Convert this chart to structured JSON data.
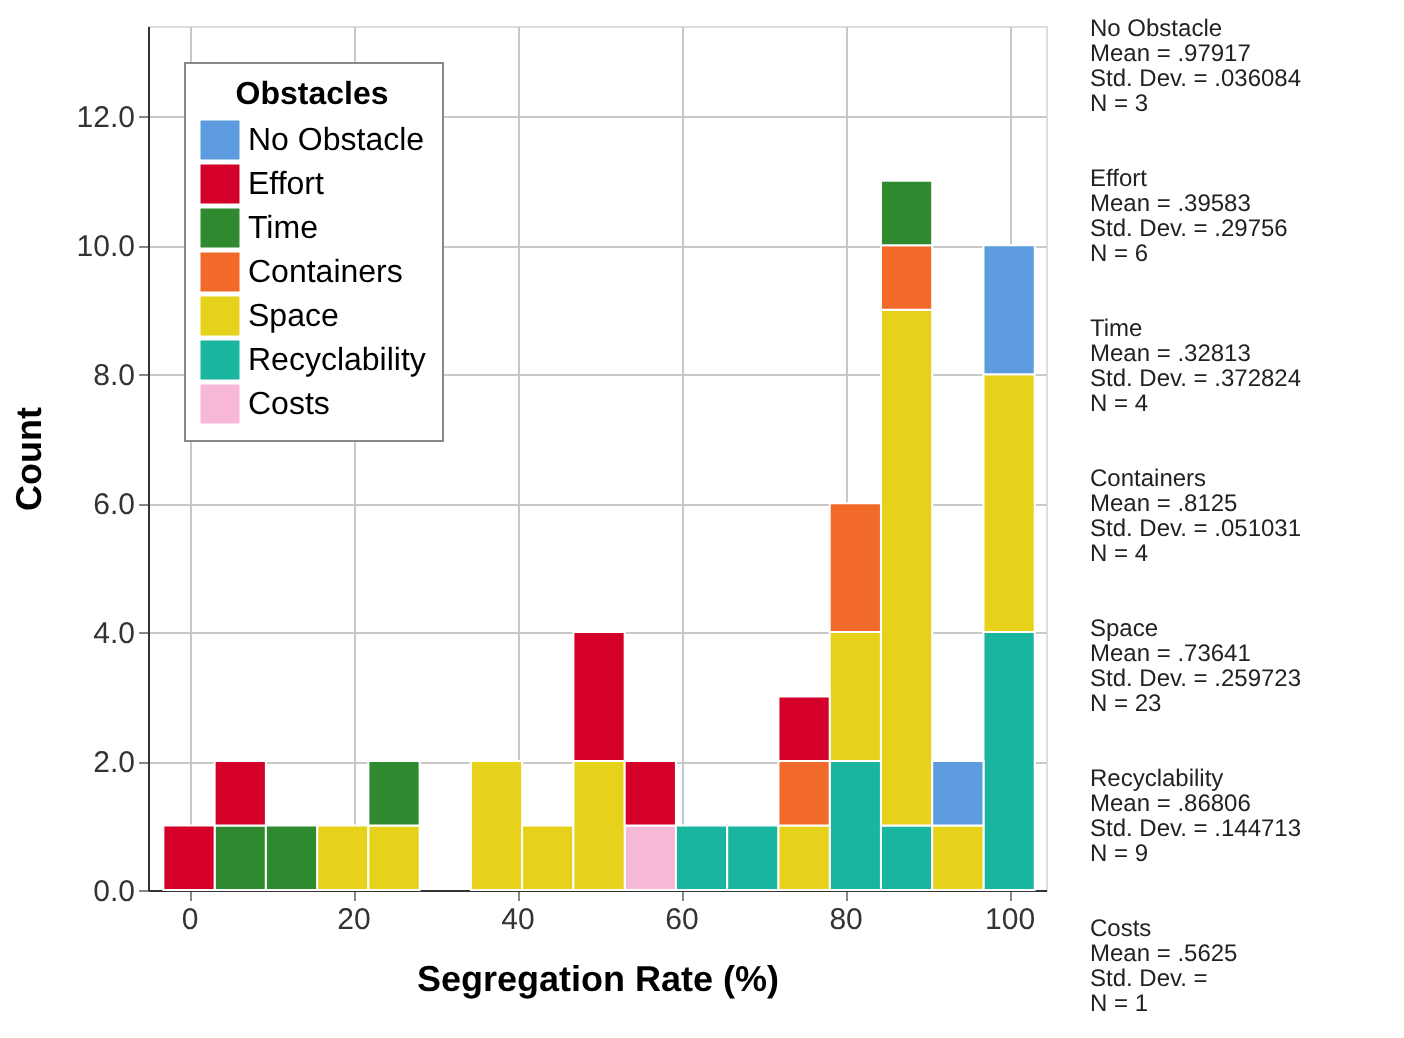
{
  "chart_data": {
    "type": "bar",
    "stacked": true,
    "xlabel": "Segregation Rate (%)",
    "ylabel": "Count",
    "legend_title": "Obstacles",
    "legend": "top left",
    "grid": true,
    "x": [
      0,
      6.25,
      12.5,
      18.75,
      25,
      31.25,
      37.5,
      43.75,
      50,
      56.25,
      62.5,
      68.75,
      75,
      81.25,
      87.5,
      93.75,
      100
    ],
    "series": [
      {
        "name": "Costs",
        "color": "#f7b8d8",
        "values": [
          0,
          0,
          0,
          0,
          0,
          0,
          0,
          0,
          0,
          1,
          0,
          0,
          0,
          0,
          0,
          0,
          0
        ]
      },
      {
        "name": "Recyclability",
        "color": "#1ab59e",
        "values": [
          0,
          0,
          0,
          0,
          0,
          0,
          0,
          0,
          0,
          0,
          1,
          1,
          0,
          2,
          1,
          0,
          4
        ]
      },
      {
        "name": "Space",
        "color": "#e6d21a",
        "values": [
          0,
          0,
          0,
          1,
          1,
          0,
          2,
          1,
          2,
          0,
          0,
          0,
          1,
          2,
          8,
          1,
          4
        ]
      },
      {
        "name": "Containers",
        "color": "#f26a2a",
        "values": [
          0,
          0,
          0,
          0,
          0,
          0,
          0,
          0,
          0,
          0,
          0,
          0,
          1,
          2,
          1,
          0,
          0
        ]
      },
      {
        "name": "Time",
        "color": "#2f8a2f",
        "values": [
          0,
          1,
          1,
          0,
          1,
          0,
          0,
          0,
          0,
          0,
          0,
          0,
          0,
          0,
          1,
          0,
          0
        ]
      },
      {
        "name": "Effort",
        "color": "#d5002a",
        "values": [
          1,
          1,
          0,
          0,
          0,
          0,
          0,
          0,
          2,
          1,
          0,
          0,
          1,
          0,
          0,
          0,
          0
        ]
      },
      {
        "name": "No Obstacle",
        "color": "#5b9bde",
        "values": [
          0,
          0,
          0,
          0,
          0,
          0,
          0,
          0,
          0,
          0,
          0,
          0,
          0,
          0,
          0,
          1,
          2
        ]
      }
    ],
    "xlim": [
      -5,
      104.5
    ],
    "xticks": [
      0,
      20,
      40,
      60,
      80,
      100
    ],
    "ylim": [
      0,
      13.4
    ],
    "yticks": [
      {
        "value": 0,
        "label": "0.0"
      },
      {
        "value": 2,
        "label": "2.0"
      },
      {
        "value": 4,
        "label": "4.0"
      },
      {
        "value": 6,
        "label": "6.0"
      },
      {
        "value": 8,
        "label": "8.0"
      },
      {
        "value": 10,
        "label": "10.0"
      },
      {
        "value": 12,
        "label": "12.0"
      }
    ],
    "annotations": [
      "No Obstacle\nMean = .97917\nStd. Dev. = .036084\nN = 3",
      "Effort\nMean = .39583\nStd. Dev. = .29756\nN = 6",
      "Time\nMean = .32813\nStd. Dev. = .372824\nN = 4",
      "Containers\nMean = .8125\nStd. Dev. = .051031\nN = 4",
      "Space\nMean = .73641\nStd. Dev. = .259723\nN = 23",
      "Recyclability\nMean = .86806\nStd. Dev. = .144713\nN = 9",
      "Costs\nMean = .5625\nStd. Dev. =\nN = 1"
    ]
  }
}
